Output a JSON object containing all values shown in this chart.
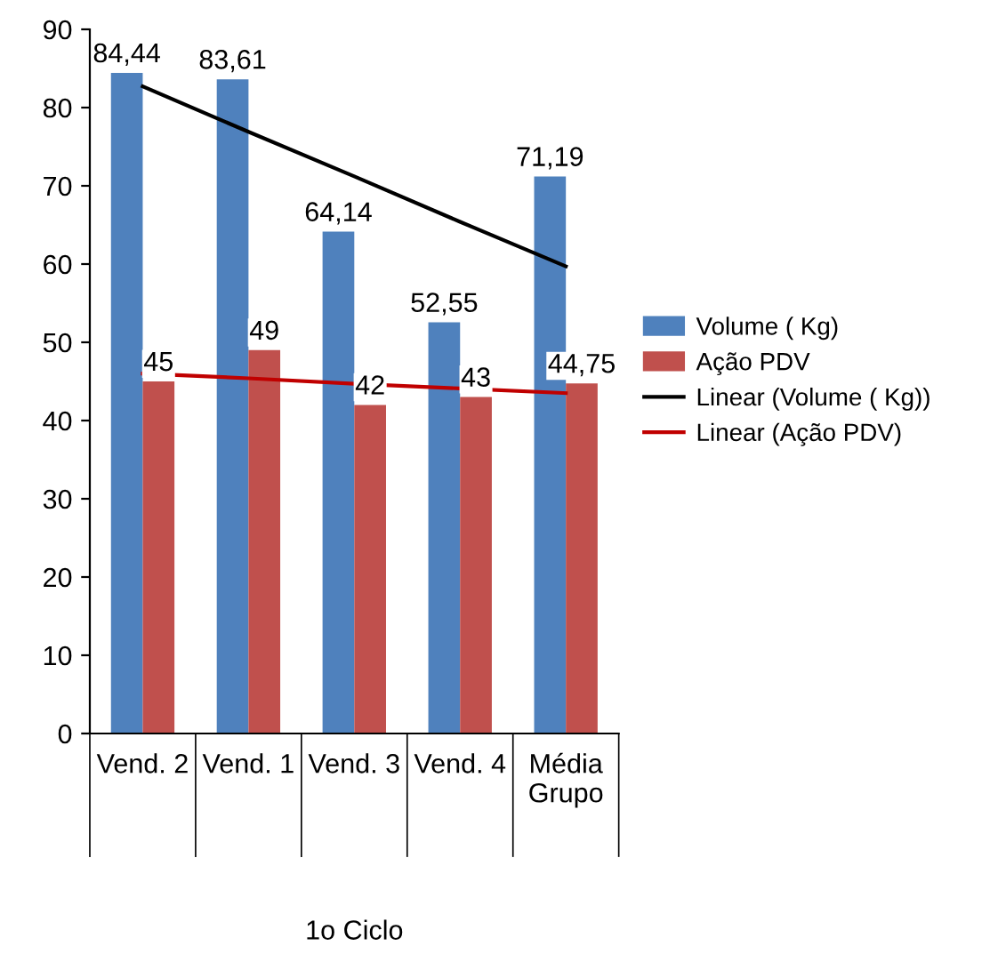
{
  "chart_data": {
    "type": "bar",
    "xlabel": "1o Ciclo",
    "categories": [
      "Vend. 2",
      "Vend. 1",
      "Vend. 3",
      "Vend. 4",
      "Média Grupo"
    ],
    "series": [
      {
        "name": "Volume ( Kg)",
        "color": "#4f81bd",
        "values": [
          84.44,
          83.61,
          64.14,
          52.55,
          71.19
        ],
        "value_labels": [
          "84,44",
          "83,61",
          "64,14",
          "52,55",
          "71,19"
        ]
      },
      {
        "name": "Ação PDV",
        "color": "#c0504d",
        "values": [
          45,
          49,
          42,
          43,
          44.75
        ],
        "value_labels": [
          "45",
          "49",
          "42",
          "43",
          "44,75"
        ]
      },
      {
        "name": "Linear (Volume ( Kg))",
        "type": "line",
        "color": "#000000",
        "values": [
          82.7,
          76.9,
          71.2,
          65.4,
          59.7
        ]
      },
      {
        "name": "Linear (Ação PDV)",
        "type": "line",
        "color": "#c00000",
        "values": [
          46.0,
          45.4,
          44.7,
          44.1,
          43.5
        ]
      }
    ],
    "ylim": [
      0,
      90
    ],
    "yticks": [
      0,
      10,
      20,
      30,
      40,
      50,
      60,
      70,
      80,
      90
    ],
    "grid": false,
    "legend": "right"
  }
}
